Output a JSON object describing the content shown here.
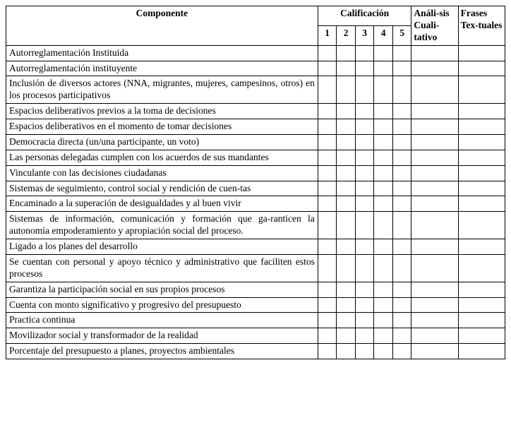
{
  "headers": {
    "componente": "Componente",
    "calificacion": "Calificación",
    "cal1": "1",
    "cal2": "2",
    "cal3": "3",
    "cal4": "4",
    "cal5": "5",
    "analisis": "Análi-sis Cuali-tativo",
    "frases": "Frases Tex-tuales"
  },
  "rows": [
    {
      "componente": "Autorreglamentación Instituida"
    },
    {
      "componente": "Autorreglamentación instituyente"
    },
    {
      "componente": "Inclusión de diversos actores (NNA, migrantes, mujeres, campesinos, otros) en los procesos participativos"
    },
    {
      "componente": "Espacios deliberativos previos a la toma de decisiones"
    },
    {
      "componente": "Espacios deliberativos en el momento de tomar decisiones"
    },
    {
      "componente": "Democracia directa (un/una participante, un voto)"
    },
    {
      "componente": "Las personas delegadas cumplen con los acuerdos de sus mandantes"
    },
    {
      "componente": "Vinculante con las decisiones ciudadanas"
    },
    {
      "componente": "Sistemas de seguimiento, control social y rendición de cuen-tas"
    },
    {
      "componente": "Encaminado a la superación de desigualdades y al buen vivir"
    },
    {
      "componente": "Sistemas de información, comunicación y formación que ga-ranticen la autonomía empoderamiento y apropiación social del proceso."
    },
    {
      "componente": "Ligado a los planes del desarrollo"
    },
    {
      "componente": "Se cuentan con personal y apoyo técnico y administrativo que faciliten estos procesos"
    },
    {
      "componente": "Garantiza la participación social en sus propios procesos"
    },
    {
      "componente": "Cuenta con monto significativo y progresivo del presupuesto"
    },
    {
      "componente": "Practica continua"
    },
    {
      "componente": "Movilizador social y transformador de la realidad"
    },
    {
      "componente": "Porcentaje del presupuesto a planes, proyectos ambientales"
    }
  ]
}
